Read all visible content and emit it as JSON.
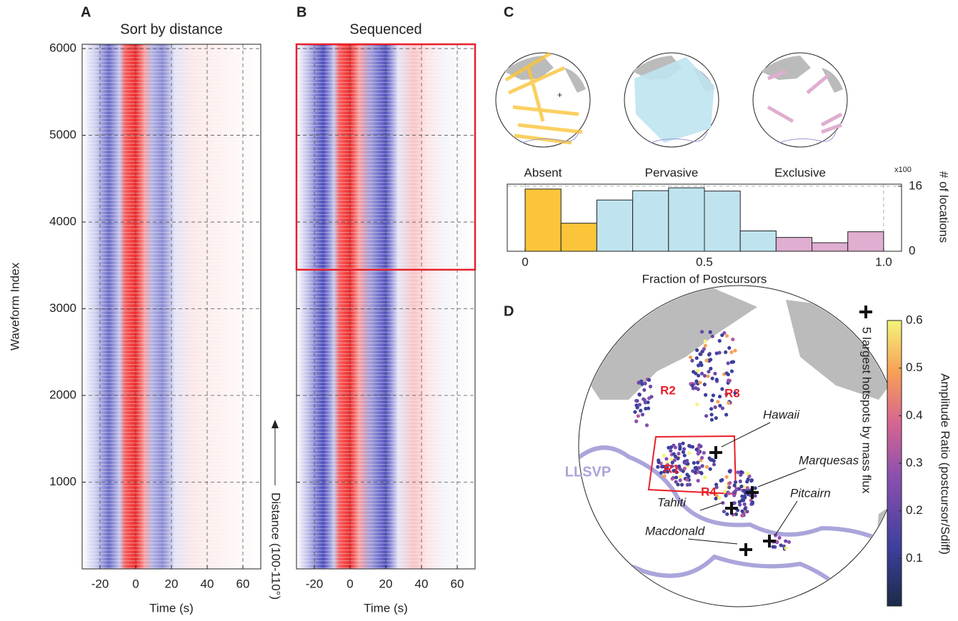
{
  "chart_data": [
    {
      "type": "heatmap",
      "panel": "A",
      "title": "Sort by distance",
      "xlabel": "Time (s)",
      "ylabel": "Waveform Index",
      "xlim": [
        -30,
        70
      ],
      "ylim": [
        0,
        6050
      ],
      "xticks": [
        -20,
        0,
        20,
        40,
        60
      ],
      "yticks": [
        1000,
        2000,
        3000,
        4000,
        5000,
        6000
      ],
      "grid": true,
      "annotation": "Distance (100-110°)"
    },
    {
      "type": "heatmap",
      "panel": "B",
      "title": "Sequenced",
      "xlabel": "Time (s)",
      "xlim": [
        -30,
        70
      ],
      "ylim": [
        0,
        6050
      ],
      "xticks": [
        -20,
        0,
        20,
        40,
        60
      ],
      "yticks": [
        1000,
        2000,
        3000,
        4000,
        5000,
        6000
      ],
      "grid": true,
      "highlight_ylim": [
        3450,
        6050
      ],
      "highlight_color": "#e8202a"
    },
    {
      "type": "histogram",
      "panel": "C",
      "group_labels": [
        "Absent",
        "Pervasive",
        "Exclusive"
      ],
      "xlabel": "Fraction of Postcursors",
      "ylabel": "# of locations",
      "yscale_label": "x100",
      "bins": [
        0,
        0.1,
        0.2,
        0.3,
        0.4,
        0.5,
        0.6,
        0.7,
        0.8,
        0.9,
        1.0
      ],
      "values": [
        15.3,
        6.9,
        12.6,
        14.9,
        15.6,
        14.8,
        5.0,
        3.4,
        2.1,
        4.8
      ],
      "colors": [
        "#fbc53a",
        "#fbc53a",
        "#bfe4f0",
        "#bfe4f0",
        "#bfe4f0",
        "#bfe4f0",
        "#bfe4f0",
        "#dfaed0",
        "#dfaed0",
        "#dfaed0"
      ],
      "xlim": [
        -0.05,
        1.05
      ],
      "ylim": [
        0,
        16.5
      ],
      "xticks": [
        0,
        0.5,
        {
          "value": 1,
          "label": "1.0"
        }
      ],
      "yticks": [
        0,
        16
      ],
      "grid": true
    },
    {
      "type": "map",
      "panel": "D",
      "regions": [
        "R1",
        "R2",
        "R3",
        "R4"
      ],
      "hotspots": [
        "Hawaii",
        "Marquesas",
        "Pitcairn",
        "Tahiti",
        "Macdonald"
      ],
      "llsvp_label": "LLSVP",
      "legend": "5 largest hotspots by mass flux",
      "colorbar_label": "Amplitude Ratio (postcursor/Sdiff)",
      "clim": [
        0,
        0.6
      ],
      "cticks": [
        0.1,
        0.2,
        0.3,
        0.4,
        0.5,
        0.6
      ]
    }
  ]
}
